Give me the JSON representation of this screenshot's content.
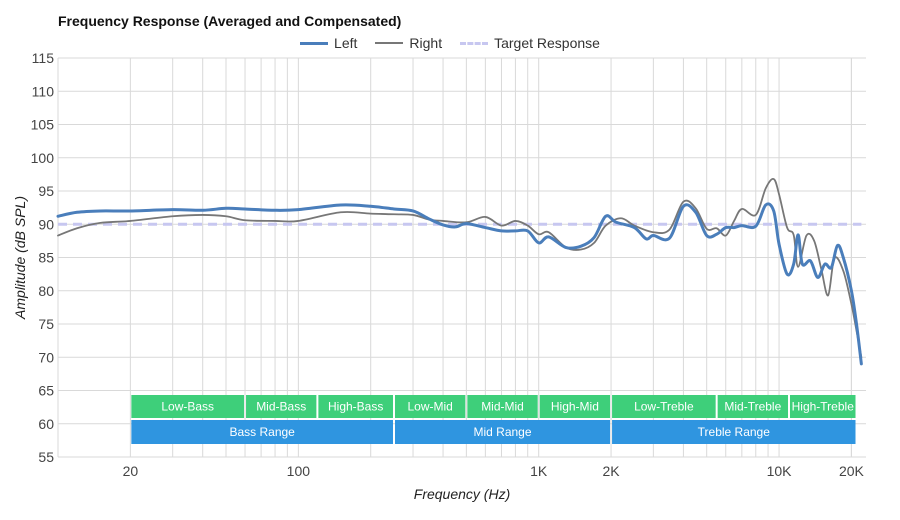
{
  "chart_data": {
    "type": "line",
    "title": "Frequency Response (Averaged and Compensated)",
    "xlabel": "Frequency (Hz)",
    "ylabel": "Amplitude (dB SPL)",
    "x_scale": "log",
    "xlim": [
      10,
      23000
    ],
    "ylim": [
      55,
      115
    ],
    "grid": true,
    "legend_position": "top",
    "y_ticks": [
      55,
      60,
      65,
      70,
      75,
      80,
      85,
      90,
      95,
      100,
      105,
      110,
      115
    ],
    "x_ticks": [
      {
        "value": 20,
        "label": "20"
      },
      {
        "value": 100,
        "label": "100"
      },
      {
        "value": 1000,
        "label": "1K"
      },
      {
        "value": 2000,
        "label": "2K"
      },
      {
        "value": 10000,
        "label": "10K"
      },
      {
        "value": 20000,
        "label": "20K"
      }
    ],
    "series": [
      {
        "name": "Left",
        "color": "#4a7ebb",
        "style": "solid",
        "points": [
          [
            10,
            91.2
          ],
          [
            12,
            91.8
          ],
          [
            15,
            92.0
          ],
          [
            20,
            92.0
          ],
          [
            30,
            92.2
          ],
          [
            40,
            92.1
          ],
          [
            50,
            92.4
          ],
          [
            60,
            92.3
          ],
          [
            80,
            92.1
          ],
          [
            100,
            92.2
          ],
          [
            150,
            92.9
          ],
          [
            200,
            92.7
          ],
          [
            250,
            92.3
          ],
          [
            300,
            92.0
          ],
          [
            350,
            90.8
          ],
          [
            400,
            89.9
          ],
          [
            450,
            89.6
          ],
          [
            500,
            90.1
          ],
          [
            600,
            89.5
          ],
          [
            700,
            89.0
          ],
          [
            800,
            89.0
          ],
          [
            900,
            89.0
          ],
          [
            1000,
            87.2
          ],
          [
            1100,
            88.1
          ],
          [
            1300,
            86.5
          ],
          [
            1500,
            86.7
          ],
          [
            1700,
            88.0
          ],
          [
            1900,
            91.2
          ],
          [
            2100,
            90.3
          ],
          [
            2500,
            89.5
          ],
          [
            2800,
            87.8
          ],
          [
            3000,
            88.3
          ],
          [
            3500,
            87.9
          ],
          [
            4000,
            92.7
          ],
          [
            4500,
            91.8
          ],
          [
            5000,
            88.3
          ],
          [
            5500,
            88.5
          ],
          [
            6000,
            89.5
          ],
          [
            6500,
            89.5
          ],
          [
            7000,
            89.8
          ],
          [
            8000,
            89.7
          ],
          [
            8800,
            92.9
          ],
          [
            9500,
            92.0
          ],
          [
            10000,
            87.0
          ],
          [
            10800,
            82.5
          ],
          [
            11500,
            84.0
          ],
          [
            12000,
            88.4
          ],
          [
            12500,
            84.0
          ],
          [
            13500,
            84.5
          ],
          [
            14500,
            82.0
          ],
          [
            15500,
            84.0
          ],
          [
            16500,
            83.5
          ],
          [
            17500,
            86.8
          ],
          [
            18500,
            85.0
          ],
          [
            20000,
            80.0
          ],
          [
            21000,
            75.0
          ],
          [
            22000,
            69.0
          ]
        ]
      },
      {
        "name": "Right",
        "color": "#777777",
        "style": "solid",
        "points": [
          [
            10,
            88.3
          ],
          [
            12,
            89.4
          ],
          [
            15,
            90.2
          ],
          [
            20,
            90.5
          ],
          [
            30,
            91.2
          ],
          [
            40,
            91.4
          ],
          [
            50,
            91.2
          ],
          [
            60,
            90.6
          ],
          [
            80,
            90.5
          ],
          [
            100,
            90.5
          ],
          [
            150,
            91.8
          ],
          [
            200,
            91.6
          ],
          [
            250,
            91.5
          ],
          [
            300,
            91.4
          ],
          [
            350,
            90.7
          ],
          [
            400,
            90.5
          ],
          [
            500,
            90.3
          ],
          [
            600,
            91.1
          ],
          [
            700,
            89.8
          ],
          [
            800,
            90.5
          ],
          [
            900,
            89.8
          ],
          [
            1000,
            88.5
          ],
          [
            1100,
            88.8
          ],
          [
            1300,
            86.5
          ],
          [
            1500,
            86.2
          ],
          [
            1700,
            87.2
          ],
          [
            1900,
            89.8
          ],
          [
            2200,
            90.9
          ],
          [
            2500,
            89.8
          ],
          [
            3000,
            88.8
          ],
          [
            3500,
            89.2
          ],
          [
            4000,
            93.4
          ],
          [
            4500,
            92.4
          ],
          [
            5000,
            89.3
          ],
          [
            5500,
            89.4
          ],
          [
            6000,
            88.3
          ],
          [
            6500,
            90.5
          ],
          [
            7000,
            92.3
          ],
          [
            8000,
            91.4
          ],
          [
            8800,
            95.4
          ],
          [
            9500,
            96.8
          ],
          [
            10000,
            94.5
          ],
          [
            10800,
            89.5
          ],
          [
            11500,
            88.4
          ],
          [
            12000,
            83.6
          ],
          [
            13000,
            88.3
          ],
          [
            14000,
            87.5
          ],
          [
            15000,
            83.2
          ],
          [
            16000,
            79.3
          ],
          [
            17000,
            84.9
          ],
          [
            18500,
            83.0
          ],
          [
            20000,
            78.0
          ],
          [
            21000,
            74.0
          ],
          [
            22000,
            70.0
          ]
        ]
      },
      {
        "name": "Target Response",
        "color": "#c7c7f0",
        "style": "dashed",
        "points": [
          [
            10,
            90.0
          ],
          [
            22000,
            90.0
          ]
        ]
      }
    ],
    "bands": [
      {
        "label": "Low-Bass",
        "from": 20,
        "to": 60,
        "row": 1
      },
      {
        "label": "Mid-Bass",
        "from": 60,
        "to": 120,
        "row": 1
      },
      {
        "label": "High-Bass",
        "from": 120,
        "to": 250,
        "row": 1
      },
      {
        "label": "Low-Mid",
        "from": 250,
        "to": 500,
        "row": 1
      },
      {
        "label": "Mid-Mid",
        "from": 500,
        "to": 1000,
        "row": 1
      },
      {
        "label": "High-Mid",
        "from": 1000,
        "to": 2000,
        "row": 1
      },
      {
        "label": "Low-Treble",
        "from": 2000,
        "to": 5500,
        "row": 1
      },
      {
        "label": "Mid-Treble",
        "from": 5500,
        "to": 11000,
        "row": 1
      },
      {
        "label": "High-Treble",
        "from": 11000,
        "to": 21000,
        "row": 1
      },
      {
        "label": "Bass Range",
        "from": 20,
        "to": 250,
        "row": 2
      },
      {
        "label": "Mid Range",
        "from": 250,
        "to": 2000,
        "row": 2
      },
      {
        "label": "Treble Range",
        "from": 2000,
        "to": 21000,
        "row": 2
      }
    ],
    "band_colors": {
      "row1": "#3ecf7a",
      "row2": "#2f95e0"
    },
    "grid_color": "#d9d9d9"
  }
}
